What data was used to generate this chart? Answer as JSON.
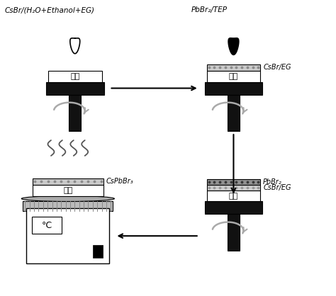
{
  "bg_color": "#ffffff",
  "text_color": "#000000",
  "title_top_left": "CsBr/(H₂O+Ethanol+EG)",
  "title_top_right": "PbBr₂/TEP",
  "label_jidi": "基底",
  "label_csbr_eg": "CsBr/EG",
  "label_pbbr2": "PbBr₂",
  "label_csbr_eg2": "CsBr/EG",
  "label_cspbbr3": "CsPbBr₃",
  "label_celsius": "°C",
  "spinner_black": "#111111",
  "layer_stipple_light": "#c8c8c8",
  "layer_stipple_dark": "#808080",
  "layer_dot_light": "#999999",
  "layer_dot_dark": "#444444",
  "arrow_gray": "#999999",
  "arrow_black": "#111111",
  "hotplate_gray": "#aaaaaa",
  "rib_gray": "#bbbbbb"
}
